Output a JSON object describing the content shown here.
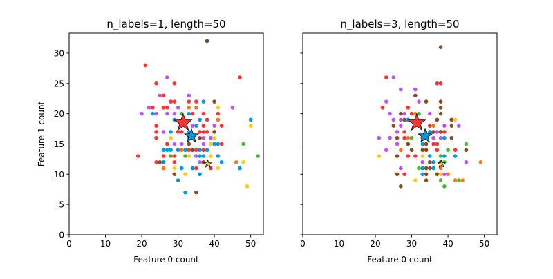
{
  "colors": {
    "red": "#ff3333",
    "purple": "#bb55ee",
    "blue": "#0099dd",
    "brown": "#8b4a22",
    "green": "#44bb33",
    "orange": "#ff7711",
    "yellow": "#ffcc11"
  },
  "chart_data": [
    {
      "type": "scatter",
      "title": "n_labels=1, length=50",
      "xlabel": "Feature 0 count",
      "ylabel": "Feature 1 count",
      "xlim": [
        0,
        53.5
      ],
      "ylim": [
        0,
        33.3
      ],
      "xticks": [
        0,
        10,
        20,
        30,
        40,
        50
      ],
      "yticks": [
        0,
        5,
        10,
        15,
        20,
        25,
        30
      ],
      "show_ytick_labels": true,
      "grid": false,
      "points": {
        "red": [
          [
            21,
            28
          ],
          [
            47,
            26
          ],
          [
            24,
            25
          ],
          [
            29,
            25
          ],
          [
            26,
            23
          ],
          [
            28,
            22
          ],
          [
            29,
            22
          ],
          [
            33,
            22
          ],
          [
            35,
            22
          ],
          [
            23,
            21
          ],
          [
            26,
            21
          ],
          [
            27,
            21
          ],
          [
            34,
            20
          ],
          [
            37,
            20
          ],
          [
            41,
            20
          ],
          [
            38,
            19
          ],
          [
            24,
            18
          ],
          [
            37,
            18
          ],
          [
            42,
            18
          ],
          [
            24,
            17
          ],
          [
            30,
            17
          ],
          [
            31,
            17
          ],
          [
            36,
            17
          ],
          [
            37,
            17
          ],
          [
            38,
            17
          ],
          [
            24,
            16
          ],
          [
            27,
            15
          ],
          [
            42,
            15
          ],
          [
            33,
            14
          ],
          [
            35,
            14
          ],
          [
            37,
            14
          ],
          [
            19,
            13
          ],
          [
            26,
            13
          ],
          [
            29,
            13
          ],
          [
            24,
            12
          ],
          [
            29,
            12
          ],
          [
            35,
            11
          ],
          [
            39,
            11
          ]
        ],
        "purple": [
          [
            27,
            26
          ],
          [
            25,
            23
          ],
          [
            33,
            23
          ],
          [
            22,
            21
          ],
          [
            30,
            21
          ],
          [
            45,
            21
          ],
          [
            20,
            20
          ],
          [
            24,
            20
          ],
          [
            27,
            20
          ],
          [
            29,
            20
          ],
          [
            34,
            18
          ],
          [
            40,
            18
          ],
          [
            26,
            17
          ],
          [
            37,
            16
          ],
          [
            39,
            16
          ],
          [
            29,
            15
          ],
          [
            31,
            15
          ],
          [
            37,
            15
          ],
          [
            35,
            13
          ],
          [
            36,
            12
          ]
        ],
        "blue": [
          [
            37,
            22
          ],
          [
            23,
            20
          ],
          [
            33,
            20
          ],
          [
            29,
            19
          ],
          [
            36,
            19
          ],
          [
            50,
            19
          ],
          [
            35,
            18
          ],
          [
            28,
            17
          ],
          [
            33,
            17
          ],
          [
            40,
            15
          ],
          [
            41,
            15
          ],
          [
            26,
            14
          ],
          [
            27,
            14
          ],
          [
            28,
            14
          ],
          [
            30,
            14
          ],
          [
            32,
            14
          ],
          [
            36,
            14
          ],
          [
            38,
            14
          ],
          [
            36,
            13
          ],
          [
            37,
            13
          ],
          [
            41,
            13
          ],
          [
            26,
            12
          ],
          [
            42,
            12
          ],
          [
            31,
            11
          ],
          [
            34,
            11
          ],
          [
            47,
            11
          ],
          [
            36,
            10
          ],
          [
            30,
            9
          ],
          [
            32,
            7
          ]
        ],
        "brown": [
          [
            38,
            32
          ],
          [
            40,
            22
          ],
          [
            40,
            17
          ],
          [
            36,
            16
          ],
          [
            33,
            15
          ],
          [
            34,
            14
          ],
          [
            25,
            12
          ],
          [
            37,
            12
          ],
          [
            29,
            10
          ],
          [
            35,
            7
          ]
        ],
        "green": [
          [
            31,
            20
          ],
          [
            33,
            16
          ],
          [
            48,
            15
          ],
          [
            28,
            13
          ],
          [
            32,
            13
          ],
          [
            52,
            13
          ]
        ],
        "orange": [
          [
            33,
            21
          ],
          [
            35,
            21
          ],
          [
            41,
            19
          ],
          [
            31,
            14
          ],
          [
            46,
            12
          ],
          [
            26,
            11
          ]
        ],
        "yellow": [
          [
            41,
            21
          ],
          [
            50,
            18
          ],
          [
            28,
            16
          ],
          [
            40,
            16
          ],
          [
            39,
            15
          ],
          [
            33,
            13
          ],
          [
            39,
            13
          ],
          [
            48,
            12
          ],
          [
            29,
            11
          ],
          [
            41,
            11
          ],
          [
            32,
            10
          ],
          [
            49,
            8
          ]
        ]
      },
      "centroids": [
        {
          "color": "red",
          "x": 31.4,
          "y": 18.5,
          "size": "large"
        },
        {
          "color": "blue",
          "x": 33.7,
          "y": 16.3,
          "size": "medium"
        },
        {
          "color": "yellow",
          "x": 38.2,
          "y": 11.7,
          "size": "small"
        }
      ]
    },
    {
      "type": "scatter",
      "title": "n_labels=3, length=50",
      "xlabel": "Feature 0 count",
      "ylabel": "",
      "xlim": [
        0,
        53.5
      ],
      "ylim": [
        0,
        33.3
      ],
      "xticks": [
        0,
        10,
        20,
        30,
        40,
        50
      ],
      "yticks": [
        0,
        5,
        10,
        15,
        20,
        25,
        30
      ],
      "show_ytick_labels": false,
      "grid": false,
      "points": {
        "red": [
          [
            23,
            26
          ],
          [
            37,
            25
          ],
          [
            38,
            25
          ],
          [
            22,
            21
          ],
          [
            29,
            21
          ],
          [
            30,
            20
          ],
          [
            35,
            18
          ],
          [
            39,
            17
          ],
          [
            28,
            17
          ],
          [
            28,
            16
          ],
          [
            36,
            15
          ],
          [
            37,
            15
          ],
          [
            37,
            14
          ],
          [
            42,
            14
          ],
          [
            29,
            13
          ],
          [
            31,
            13
          ],
          [
            28,
            10
          ]
        ],
        "purple": [
          [
            25,
            26
          ],
          [
            27,
            24
          ],
          [
            31,
            24
          ],
          [
            23,
            22
          ],
          [
            32,
            22
          ],
          [
            24,
            20
          ],
          [
            28,
            20
          ],
          [
            35,
            20
          ],
          [
            25,
            19
          ],
          [
            27,
            19
          ],
          [
            27,
            18
          ],
          [
            39,
            18
          ],
          [
            43,
            18
          ],
          [
            26,
            17
          ],
          [
            37,
            17
          ],
          [
            21,
            16
          ],
          [
            24,
            16
          ],
          [
            36,
            16
          ],
          [
            38,
            16
          ],
          [
            26,
            15
          ],
          [
            23,
            14
          ],
          [
            33,
            12
          ],
          [
            45,
            12
          ],
          [
            27,
            11
          ],
          [
            39,
            10
          ]
        ],
        "brown": [
          [
            38,
            31
          ],
          [
            31,
            23
          ],
          [
            34,
            22
          ],
          [
            38,
            22
          ],
          [
            38,
            21
          ],
          [
            27,
            20
          ],
          [
            38,
            20
          ],
          [
            28,
            19
          ],
          [
            37,
            19
          ],
          [
            41,
            19
          ],
          [
            25,
            18
          ],
          [
            41,
            18
          ],
          [
            36,
            17
          ],
          [
            38,
            17
          ],
          [
            26,
            16
          ],
          [
            33,
            16
          ],
          [
            41,
            16
          ],
          [
            29,
            15
          ],
          [
            34,
            15
          ],
          [
            30,
            14
          ],
          [
            33,
            14
          ],
          [
            34,
            14
          ],
          [
            45,
            14
          ],
          [
            26,
            13
          ],
          [
            35,
            12
          ],
          [
            38,
            12
          ],
          [
            34,
            11
          ],
          [
            35,
            11
          ],
          [
            26,
            10
          ],
          [
            34,
            10
          ],
          [
            37,
            10
          ],
          [
            34,
            9
          ],
          [
            27,
            8
          ]
        ],
        "blue": [
          [
            29,
            19
          ],
          [
            35,
            17
          ],
          [
            39,
            16
          ],
          [
            33,
            15
          ],
          [
            35,
            13
          ],
          [
            39,
            13
          ],
          [
            42,
            13
          ],
          [
            36,
            12
          ],
          [
            33,
            11
          ],
          [
            36,
            11
          ],
          [
            33,
            10
          ]
        ],
        "green": [
          [
            32,
            20
          ],
          [
            30,
            16
          ],
          [
            45,
            15
          ],
          [
            40,
            14
          ],
          [
            38,
            13
          ],
          [
            39,
            12
          ],
          [
            32,
            11
          ],
          [
            38,
            9
          ],
          [
            43,
            9
          ],
          [
            39,
            8
          ]
        ],
        "orange": [
          [
            31,
            20
          ],
          [
            36,
            18
          ],
          [
            29,
            16
          ],
          [
            27,
            14
          ],
          [
            49,
            12
          ],
          [
            38,
            11
          ],
          [
            40,
            10
          ],
          [
            42,
            9
          ],
          [
            44,
            9
          ]
        ],
        "yellow": [
          [
            42,
            19
          ],
          [
            21,
            13
          ],
          [
            33,
            13
          ],
          [
            38,
            10
          ],
          [
            31,
            9
          ]
        ]
      },
      "centroids": [
        {
          "color": "red",
          "x": 31.4,
          "y": 18.5,
          "size": "large"
        },
        {
          "color": "blue",
          "x": 33.7,
          "y": 16.3,
          "size": "medium"
        },
        {
          "color": "yellow",
          "x": 38.2,
          "y": 11.7,
          "size": "small"
        }
      ]
    }
  ]
}
